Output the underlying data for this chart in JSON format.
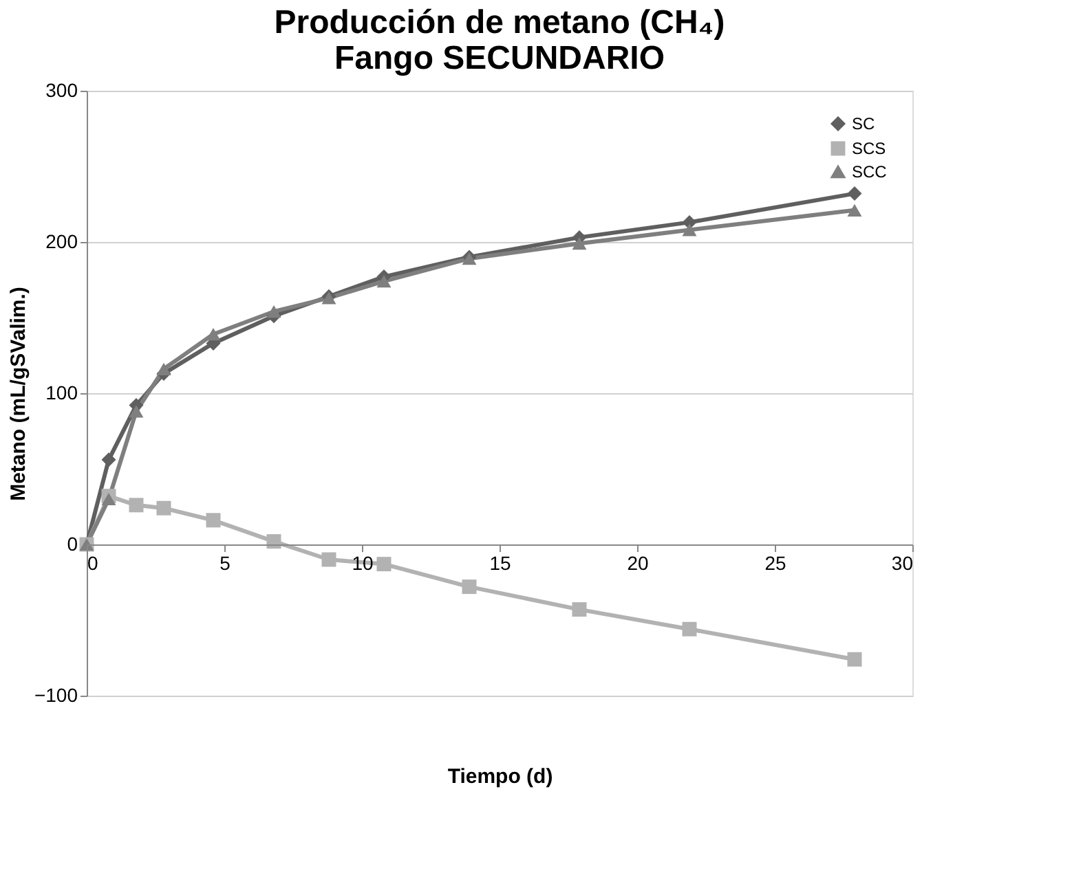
{
  "chart_data": {
    "type": "line",
    "title": [
      "Producción de metano (CH₄)",
      "Fango SECUNDARIO"
    ],
    "xlabel": "Tiempo (d)",
    "ylabel": "Metano (mL/gSValim.)",
    "x": [
      0,
      0.8,
      1.8,
      2.8,
      4.6,
      6.8,
      8.8,
      10.8,
      13.9,
      17.9,
      21.9,
      27.9
    ],
    "series": [
      {
        "name": "SC",
        "color": "#5f5f5f",
        "marker": "diamond",
        "values": [
          0,
          56,
          92,
          113,
          133,
          151,
          164,
          177,
          190,
          203,
          213,
          232
        ]
      },
      {
        "name": "SCS",
        "color": "#b2b2b2",
        "marker": "square",
        "values": [
          0,
          32,
          26,
          24,
          16,
          2,
          -10,
          -13,
          -28,
          -43,
          -56,
          -76
        ]
      },
      {
        "name": "SCC",
        "color": "#7f7f7f",
        "marker": "triangle",
        "values": [
          0,
          30,
          88,
          116,
          139,
          154,
          163,
          174,
          189,
          199,
          208,
          221
        ]
      }
    ],
    "xlim": [
      0,
      30
    ],
    "xticks": [
      0,
      5,
      10,
      15,
      20,
      25,
      30
    ],
    "ylim": [
      -100,
      300
    ],
    "yticks": [
      -100,
      0,
      100,
      200,
      300
    ],
    "grid": "y",
    "legend": "top right",
    "line_style": "solid"
  }
}
